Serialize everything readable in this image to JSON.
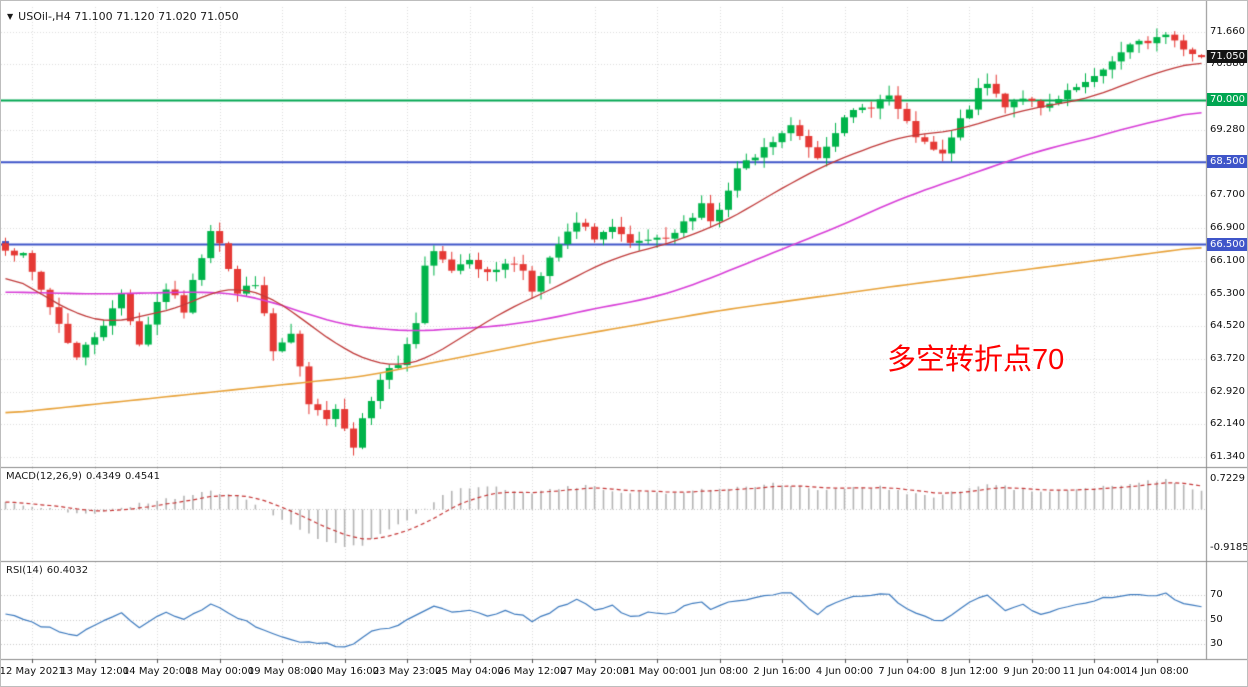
{
  "header": {
    "dropdown_icon": "▼",
    "title": "USOil-,H4 71.100 71.120 71.020 71.050"
  },
  "colors": {
    "background": "#ffffff",
    "up": "#00b44a",
    "down": "#e53935",
    "grid": "#dcdcdc",
    "panel_border": "#8a8a8a",
    "macd_hist": "#b5b5b5",
    "macd_signal": "#c63838",
    "rsi_line": "#3e7bbf",
    "axis_text": "#111111"
  },
  "chart_data": {
    "type": "candlestick",
    "symbol": "USOil-",
    "timeframe": "H4",
    "bars": 135,
    "last_bar": {
      "open": 71.1,
      "high": 71.12,
      "low": 71.02,
      "close": 71.05
    },
    "price_axis_ticks": [
      {
        "label": "71.660",
        "price": 71.66
      },
      {
        "label": "70.880",
        "price": 70.88
      },
      {
        "label": "69.280",
        "price": 69.28
      },
      {
        "label": "67.700",
        "price": 67.7
      },
      {
        "label": "66.900",
        "price": 66.9
      },
      {
        "label": "66.100",
        "price": 66.1
      },
      {
        "label": "65.300",
        "price": 65.3
      },
      {
        "label": "64.520",
        "price": 64.52
      },
      {
        "label": "63.720",
        "price": 63.72
      },
      {
        "label": "62.920",
        "price": 62.92
      },
      {
        "label": "62.140",
        "price": 62.14
      },
      {
        "label": "61.340",
        "price": 61.34
      }
    ],
    "price_badges": [
      {
        "label": "71.050",
        "price": 71.05,
        "bg": "#141414",
        "name": "current-price-badge"
      },
      {
        "label": "70.000",
        "price": 70.0,
        "bg": "#00a651",
        "name": "hline-badge-70000"
      },
      {
        "label": "68.500",
        "price": 68.5,
        "bg": "#3f55c9",
        "name": "hline-badge-68500"
      },
      {
        "label": "66.500",
        "price": 66.5,
        "bg": "#3f55c9",
        "name": "hline-badge-66500"
      }
    ],
    "hlines": [
      {
        "price": 70.0,
        "color": "#00a651",
        "width": 2,
        "handle": false
      },
      {
        "price": 68.5,
        "color": "#3f55c9",
        "width": 2,
        "handle": false
      },
      {
        "price": 66.5,
        "color": "#3f55c9",
        "width": 2,
        "handle": true
      }
    ],
    "close_anchors": [
      [
        0,
        66.45
      ],
      [
        2,
        66.2
      ],
      [
        5,
        65.0
      ],
      [
        8,
        63.75
      ],
      [
        10,
        64.3
      ],
      [
        12,
        64.9
      ],
      [
        13,
        65.3
      ],
      [
        15,
        64.1
      ],
      [
        17,
        65.1
      ],
      [
        18,
        65.45
      ],
      [
        20,
        64.9
      ],
      [
        23,
        66.9
      ],
      [
        24,
        66.6
      ],
      [
        26,
        65.3
      ],
      [
        28,
        65.6
      ],
      [
        30,
        63.9
      ],
      [
        32,
        64.3
      ],
      [
        34,
        62.6
      ],
      [
        36,
        62.2
      ],
      [
        37,
        62.6
      ],
      [
        39,
        61.6
      ],
      [
        40,
        62.3
      ],
      [
        42,
        63.3
      ],
      [
        44,
        63.6
      ],
      [
        46,
        64.6
      ],
      [
        47,
        65.9
      ],
      [
        48,
        66.3
      ],
      [
        50,
        65.9
      ],
      [
        52,
        66.2
      ],
      [
        54,
        65.75
      ],
      [
        56,
        66.1
      ],
      [
        58,
        65.9
      ],
      [
        59,
        65.45
      ],
      [
        60,
        65.7
      ],
      [
        62,
        66.5
      ],
      [
        64,
        67.0
      ],
      [
        66,
        66.7
      ],
      [
        68,
        66.9
      ],
      [
        70,
        66.45
      ],
      [
        72,
        66.6
      ],
      [
        74,
        66.55
      ],
      [
        76,
        67.0
      ],
      [
        78,
        67.5
      ],
      [
        79,
        67.1
      ],
      [
        80,
        67.3
      ],
      [
        82,
        68.3
      ],
      [
        84,
        68.6
      ],
      [
        86,
        69.0
      ],
      [
        88,
        69.35
      ],
      [
        90,
        68.9
      ],
      [
        91,
        68.65
      ],
      [
        93,
        69.3
      ],
      [
        95,
        69.7
      ],
      [
        97,
        69.9
      ],
      [
        99,
        70.1
      ],
      [
        101,
        69.4
      ],
      [
        103,
        68.9
      ],
      [
        105,
        68.65
      ],
      [
        107,
        69.5
      ],
      [
        109,
        70.2
      ],
      [
        110,
        70.4
      ],
      [
        112,
        69.9
      ],
      [
        114,
        70.1
      ],
      [
        116,
        69.75
      ],
      [
        118,
        70.0
      ],
      [
        120,
        70.3
      ],
      [
        122,
        70.5
      ],
      [
        124,
        71.0
      ],
      [
        126,
        71.3
      ],
      [
        128,
        71.45
      ],
      [
        130,
        71.6
      ],
      [
        132,
        71.3
      ],
      [
        134,
        71.05
      ]
    ],
    "moving_averages": [
      {
        "name": "ma-slow-orange",
        "color": "#e8a33b",
        "width": 1.6,
        "anchors": [
          [
            0,
            62.4
          ],
          [
            20,
            62.85
          ],
          [
            40,
            63.3
          ],
          [
            60,
            64.15
          ],
          [
            80,
            64.9
          ],
          [
            100,
            65.5
          ],
          [
            120,
            66.05
          ],
          [
            134,
            66.45
          ]
        ]
      },
      {
        "name": "ma-mid-magenta",
        "color": "#d83fd8",
        "width": 1.6,
        "anchors": [
          [
            0,
            65.35
          ],
          [
            10,
            65.3
          ],
          [
            22,
            65.35
          ],
          [
            26,
            65.3
          ],
          [
            30,
            65.1
          ],
          [
            34,
            64.8
          ],
          [
            38,
            64.55
          ],
          [
            42,
            64.45
          ],
          [
            46,
            64.4
          ],
          [
            50,
            64.45
          ],
          [
            54,
            64.5
          ],
          [
            58,
            64.6
          ],
          [
            62,
            64.75
          ],
          [
            66,
            64.95
          ],
          [
            70,
            65.1
          ],
          [
            74,
            65.3
          ],
          [
            78,
            65.6
          ],
          [
            82,
            65.95
          ],
          [
            86,
            66.3
          ],
          [
            90,
            66.65
          ],
          [
            94,
            67.0
          ],
          [
            98,
            67.4
          ],
          [
            102,
            67.75
          ],
          [
            106,
            68.05
          ],
          [
            110,
            68.35
          ],
          [
            114,
            68.65
          ],
          [
            118,
            68.9
          ],
          [
            122,
            69.1
          ],
          [
            126,
            69.35
          ],
          [
            130,
            69.55
          ],
          [
            134,
            69.75
          ]
        ]
      },
      {
        "name": "ma-fast-red",
        "color": "#c03a3a",
        "width": 1.3,
        "anchors": [
          [
            0,
            65.8
          ],
          [
            4,
            65.3
          ],
          [
            8,
            64.8
          ],
          [
            12,
            64.6
          ],
          [
            16,
            64.8
          ],
          [
            20,
            65.0
          ],
          [
            23,
            65.35
          ],
          [
            26,
            65.45
          ],
          [
            29,
            65.3
          ],
          [
            32,
            64.9
          ],
          [
            35,
            64.4
          ],
          [
            38,
            63.95
          ],
          [
            41,
            63.65
          ],
          [
            44,
            63.55
          ],
          [
            47,
            63.7
          ],
          [
            50,
            64.1
          ],
          [
            53,
            64.5
          ],
          [
            56,
            64.9
          ],
          [
            59,
            65.2
          ],
          [
            62,
            65.5
          ],
          [
            65,
            65.85
          ],
          [
            68,
            66.15
          ],
          [
            71,
            66.35
          ],
          [
            74,
            66.5
          ],
          [
            77,
            66.75
          ],
          [
            80,
            67.0
          ],
          [
            83,
            67.35
          ],
          [
            86,
            67.75
          ],
          [
            89,
            68.1
          ],
          [
            92,
            68.45
          ],
          [
            95,
            68.7
          ],
          [
            98,
            68.95
          ],
          [
            101,
            69.15
          ],
          [
            104,
            69.2
          ],
          [
            107,
            69.3
          ],
          [
            110,
            69.5
          ],
          [
            113,
            69.7
          ],
          [
            116,
            69.85
          ],
          [
            119,
            69.95
          ],
          [
            122,
            70.1
          ],
          [
            125,
            70.35
          ],
          [
            128,
            70.6
          ],
          [
            131,
            70.8
          ],
          [
            134,
            70.95
          ]
        ]
      }
    ],
    "macd": {
      "label": "MACD(12,26,9)",
      "value_main": "0.4349",
      "value_signal": "0.4541",
      "axis_labels": [
        {
          "label": "0.7229",
          "value": 0.7229
        },
        {
          "label": "-0.9185",
          "value": -0.9185
        }
      ],
      "anchors": [
        [
          0,
          0.18
        ],
        [
          5,
          0.0
        ],
        [
          9,
          -0.12
        ],
        [
          13,
          0.05
        ],
        [
          17,
          0.2
        ],
        [
          23,
          0.45
        ],
        [
          26,
          0.3
        ],
        [
          29,
          0.0
        ],
        [
          32,
          -0.35
        ],
        [
          35,
          -0.7
        ],
        [
          38,
          -0.9
        ],
        [
          40,
          -0.85
        ],
        [
          43,
          -0.5
        ],
        [
          46,
          -0.1
        ],
        [
          48,
          0.2
        ],
        [
          50,
          0.45
        ],
        [
          53,
          0.55
        ],
        [
          56,
          0.5
        ],
        [
          59,
          0.4
        ],
        [
          62,
          0.5
        ],
        [
          65,
          0.55
        ],
        [
          68,
          0.45
        ],
        [
          71,
          0.4
        ],
        [
          74,
          0.38
        ],
        [
          77,
          0.45
        ],
        [
          80,
          0.5
        ],
        [
          83,
          0.55
        ],
        [
          86,
          0.6
        ],
        [
          89,
          0.55
        ],
        [
          92,
          0.45
        ],
        [
          95,
          0.5
        ],
        [
          98,
          0.55
        ],
        [
          101,
          0.4
        ],
        [
          104,
          0.3
        ],
        [
          107,
          0.45
        ],
        [
          110,
          0.6
        ],
        [
          113,
          0.5
        ],
        [
          116,
          0.4
        ],
        [
          119,
          0.45
        ],
        [
          122,
          0.5
        ],
        [
          125,
          0.6
        ],
        [
          128,
          0.68
        ],
        [
          130,
          0.7229
        ],
        [
          132,
          0.55
        ],
        [
          134,
          0.4349
        ]
      ]
    },
    "rsi": {
      "label": "RSI(14)",
      "value": "60.4032",
      "levels": [
        {
          "label": "70",
          "value": 70
        },
        {
          "label": "50",
          "value": 50
        },
        {
          "label": "30",
          "value": 30
        }
      ],
      "anchors": [
        [
          0,
          55
        ],
        [
          4,
          45
        ],
        [
          8,
          37
        ],
        [
          11,
          50
        ],
        [
          13,
          55
        ],
        [
          15,
          44
        ],
        [
          18,
          56
        ],
        [
          20,
          50
        ],
        [
          23,
          62
        ],
        [
          25,
          55
        ],
        [
          27,
          48
        ],
        [
          30,
          38
        ],
        [
          33,
          32
        ],
        [
          36,
          30
        ],
        [
          38,
          27
        ],
        [
          39,
          30
        ],
        [
          41,
          40
        ],
        [
          44,
          45
        ],
        [
          47,
          58
        ],
        [
          48,
          62
        ],
        [
          50,
          55
        ],
        [
          52,
          58
        ],
        [
          54,
          52
        ],
        [
          56,
          57
        ],
        [
          58,
          53
        ],
        [
          59,
          48
        ],
        [
          62,
          60
        ],
        [
          64,
          67
        ],
        [
          66,
          58
        ],
        [
          68,
          61
        ],
        [
          70,
          52
        ],
        [
          72,
          56
        ],
        [
          74,
          54
        ],
        [
          76,
          60
        ],
        [
          78,
          65
        ],
        [
          79,
          58
        ],
        [
          82,
          66
        ],
        [
          84,
          68
        ],
        [
          86,
          70
        ],
        [
          88,
          72
        ],
        [
          90,
          60
        ],
        [
          91,
          55
        ],
        [
          93,
          64
        ],
        [
          95,
          68
        ],
        [
          97,
          69
        ],
        [
          99,
          71
        ],
        [
          101,
          58
        ],
        [
          103,
          52
        ],
        [
          105,
          48
        ],
        [
          107,
          60
        ],
        [
          109,
          68
        ],
        [
          110,
          70
        ],
        [
          112,
          58
        ],
        [
          114,
          62
        ],
        [
          116,
          54
        ],
        [
          118,
          58
        ],
        [
          120,
          62
        ],
        [
          122,
          66
        ],
        [
          124,
          68
        ],
        [
          126,
          70
        ],
        [
          128,
          69
        ],
        [
          130,
          71
        ],
        [
          132,
          62
        ],
        [
          134,
          60.4
        ]
      ]
    },
    "x_labels": [
      {
        "text": "12 May 2021",
        "bar": 3
      },
      {
        "text": "13 May 12:00",
        "bar": 10
      },
      {
        "text": "14 May 20:00",
        "bar": 17
      },
      {
        "text": "18 May 00:00",
        "bar": 24
      },
      {
        "text": "19 May 08:00",
        "bar": 31
      },
      {
        "text": "20 May 16:00",
        "bar": 38
      },
      {
        "text": "23 May 23:00",
        "bar": 45
      },
      {
        "text": "25 May 04:00",
        "bar": 52
      },
      {
        "text": "26 May 12:00",
        "bar": 59
      },
      {
        "text": "27 May 20:00",
        "bar": 66
      },
      {
        "text": "31 May 00:00",
        "bar": 73
      },
      {
        "text": "1 Jun 08:00",
        "bar": 80
      },
      {
        "text": "2 Jun 16:00",
        "bar": 87
      },
      {
        "text": "4 Jun 00:00",
        "bar": 94
      },
      {
        "text": "7 Jun 04:00",
        "bar": 101
      },
      {
        "text": "8 Jun 12:00",
        "bar": 108
      },
      {
        "text": "9 Jun 20:00",
        "bar": 115
      },
      {
        "text": "11 Jun 04:00",
        "bar": 122
      },
      {
        "text": "14 Jun 08:00",
        "bar": 129
      }
    ],
    "annotation": {
      "text": "多空转折点70",
      "color": "#ff0000"
    }
  }
}
